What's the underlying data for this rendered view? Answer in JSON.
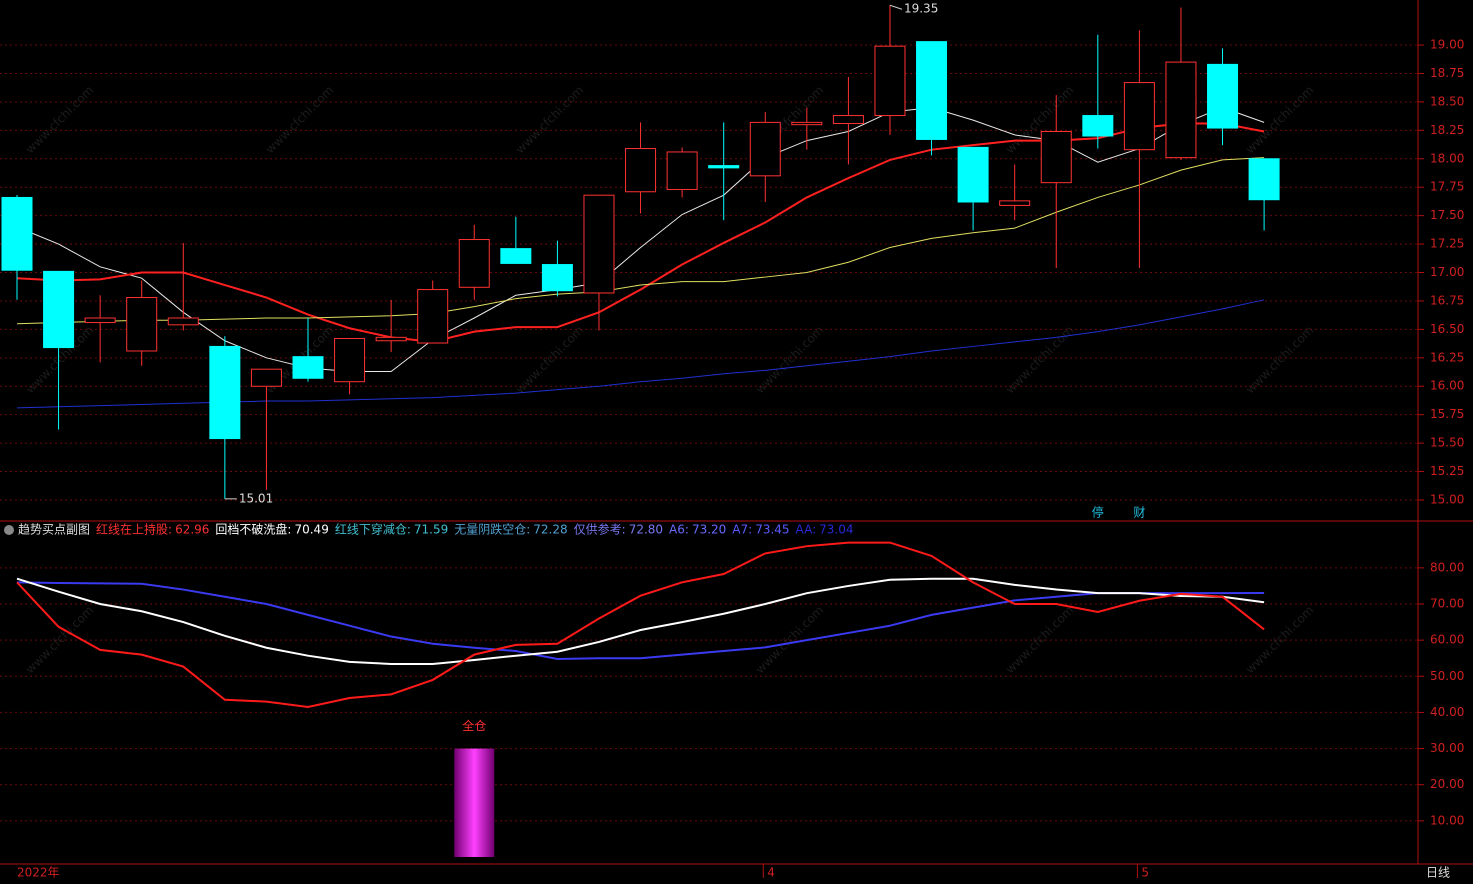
{
  "chart_data": [
    {
      "type": "candlestick",
      "categories": [
        "2022年",
        null,
        null,
        null,
        null,
        null,
        null,
        null,
        null,
        null,
        null,
        null,
        null,
        null,
        null,
        null,
        null,
        null,
        "4",
        null,
        null,
        null,
        null,
        null,
        null,
        null,
        null,
        "5",
        null,
        null,
        null
      ],
      "open": [
        17.66,
        17.01,
        16.56,
        16.31,
        16.54,
        16.35,
        16.0,
        16.26,
        16.04,
        16.4,
        16.38,
        16.87,
        17.21,
        17.07,
        16.82,
        17.71,
        17.73,
        17.94,
        17.85,
        18.3,
        18.31,
        18.38,
        19.03,
        18.1,
        17.59,
        17.79,
        18.38,
        18.08,
        18.01,
        18.83,
        18.0
      ],
      "high": [
        17.68,
        17.01,
        16.8,
        16.93,
        17.26,
        16.44,
        16.15,
        16.6,
        16.42,
        16.76,
        16.93,
        17.42,
        17.49,
        17.28,
        17.68,
        18.32,
        18.1,
        18.32,
        18.41,
        18.45,
        18.72,
        19.35,
        19.03,
        18.1,
        17.95,
        18.56,
        19.09,
        19.13,
        19.33,
        18.97,
        18.0
      ],
      "low": [
        16.76,
        15.62,
        16.21,
        16.18,
        16.49,
        15.01,
        15.09,
        16.04,
        15.93,
        16.3,
        16.38,
        16.76,
        17.08,
        16.79,
        16.49,
        17.52,
        17.66,
        17.46,
        17.62,
        18.08,
        17.95,
        18.21,
        18.03,
        17.37,
        17.46,
        17.04,
        18.09,
        17.04,
        17.99,
        18.12,
        17.37
      ],
      "close": [
        17.02,
        16.34,
        16.6,
        16.78,
        16.6,
        15.54,
        16.15,
        16.07,
        16.42,
        16.43,
        16.85,
        17.29,
        17.08,
        16.84,
        17.68,
        18.09,
        18.06,
        17.92,
        18.32,
        18.32,
        18.38,
        18.99,
        18.17,
        17.62,
        17.63,
        18.24,
        18.2,
        18.67,
        18.85,
        18.27,
        17.64
      ],
      "up_color": "#ff3232",
      "down_color": "#00ffff",
      "series": [
        {
          "color": "#e8e8e8",
          "values": [
            17.4,
            17.25,
            17.05,
            16.95,
            16.65,
            16.4,
            16.25,
            16.16,
            16.13,
            16.13,
            16.41,
            16.6,
            16.8,
            16.85,
            16.91,
            17.22,
            17.51,
            17.68,
            18.01,
            18.16,
            18.24,
            18.41,
            18.45,
            18.34,
            18.21,
            18.16,
            17.97,
            18.09,
            18.3,
            18.45,
            18.32
          ]
        },
        {
          "color": "#ff2020",
          "values": [
            16.95,
            16.93,
            16.94,
            17.0,
            17.0,
            16.89,
            16.78,
            16.63,
            16.51,
            16.43,
            16.39,
            16.48,
            16.52,
            16.52,
            16.65,
            16.85,
            17.07,
            17.26,
            17.44,
            17.66,
            17.83,
            17.99,
            18.08,
            18.12,
            18.16,
            18.16,
            18.18,
            18.27,
            18.31,
            18.31,
            18.24
          ]
        },
        {
          "color": "#e0e060",
          "values": [
            16.55,
            16.56,
            16.57,
            16.58,
            16.58,
            16.59,
            16.6,
            16.6,
            16.61,
            16.62,
            16.64,
            16.7,
            16.77,
            16.81,
            16.83,
            16.89,
            16.92,
            16.92,
            16.96,
            17.0,
            17.09,
            17.22,
            17.3,
            17.35,
            17.39,
            17.53,
            17.66,
            17.77,
            17.9,
            17.99,
            18.01
          ]
        },
        {
          "color": "#2030d0",
          "values": [
            15.81,
            15.82,
            15.83,
            15.84,
            15.85,
            15.86,
            15.87,
            15.87,
            15.88,
            15.89,
            15.9,
            15.92,
            15.94,
            15.97,
            16.0,
            16.04,
            16.07,
            16.11,
            16.14,
            16.18,
            16.22,
            16.26,
            16.31,
            16.35,
            16.39,
            16.43,
            16.48,
            16.54,
            16.61,
            16.68,
            16.76
          ]
        }
      ],
      "ylim": [
        14.824,
        19.396
      ],
      "yticks": [
        {
          "value": 15,
          "label": "15.00"
        },
        {
          "value": 15.25,
          "label": "15.25"
        },
        {
          "value": 15.5,
          "label": "15.50"
        },
        {
          "value": 15.75,
          "label": "15.75"
        },
        {
          "value": 16,
          "label": "16.00"
        },
        {
          "value": 16.25,
          "label": "16.25"
        },
        {
          "value": 16.5,
          "label": "16.50"
        },
        {
          "value": 16.75,
          "label": "16.75"
        },
        {
          "value": 17,
          "label": "17.00"
        },
        {
          "value": 17.25,
          "label": "17.25"
        },
        {
          "value": 17.5,
          "label": "17.50"
        },
        {
          "value": 17.75,
          "label": "17.75"
        },
        {
          "value": 18,
          "label": "18.00"
        },
        {
          "value": 18.25,
          "label": "18.25"
        },
        {
          "value": 18.5,
          "label": "18.50"
        },
        {
          "value": 18.75,
          "label": "18.75"
        },
        {
          "value": 19,
          "label": "19.00"
        }
      ],
      "grid": true,
      "high_label_index": 21,
      "low_label_index": 5,
      "annotations": [
        {
          "index": 26,
          "text": "停"
        },
        {
          "index": 27,
          "text": "财"
        }
      ],
      "period": "日线"
    },
    {
      "type": "line",
      "title": "趋势买点副图",
      "readouts": [
        {
          "name": "红线在上持股:",
          "value": 62.96,
          "color": "#ff3030"
        },
        {
          "name": "回档不破洗盘:",
          "value": 70.49,
          "color": "#ffffff"
        },
        {
          "name": "红线下穿减仓:",
          "value": 71.59,
          "color": "#40c0d0"
        },
        {
          "name": "无量阴跌空仓:",
          "value": 72.28,
          "color": "#50a0d0"
        },
        {
          "name": "仅供参考:",
          "value": 72.8,
          "label": "72.80",
          "color": "#7878f0"
        },
        {
          "name": "A6:",
          "value": 73.2,
          "label": "73.20",
          "color": "#6a6aff"
        },
        {
          "name": "A7:",
          "value": 73.45,
          "color": "#5a5aff"
        },
        {
          "name": "AA:",
          "value": 73.04,
          "color": "#2828d8"
        }
      ],
      "series": [
        {
          "color": "#3a3af0",
          "values": [
            76,
            75.8,
            75.7,
            75.6,
            74,
            72,
            70,
            67,
            64,
            61,
            59,
            57.9,
            57,
            54.8,
            55,
            55,
            56,
            57,
            58,
            60,
            62,
            64,
            67,
            69,
            71,
            72,
            73,
            73,
            73,
            73,
            73.04
          ]
        },
        {
          "color": "#ffffff",
          "values": [
            77,
            73.4,
            70,
            68,
            65,
            61.2,
            57.9,
            55.7,
            54,
            53.4,
            53.4,
            54.5,
            55.7,
            56.8,
            59.5,
            62.8,
            65,
            67.3,
            70,
            73,
            75,
            76.7,
            77,
            77,
            75.3,
            74,
            73,
            73,
            72.2,
            72,
            70.49
          ]
        },
        {
          "color": "#ff1a1a",
          "values": [
            76,
            63.7,
            57.3,
            56,
            52.7,
            43.5,
            43,
            41.5,
            44,
            45,
            49,
            56,
            58.7,
            59,
            66,
            72.3,
            76,
            78.3,
            84,
            86,
            87,
            87,
            83.3,
            76,
            70,
            70,
            67.8,
            70.9,
            72.8,
            72,
            62.96
          ]
        }
      ],
      "bars": {
        "values": [
          null,
          null,
          null,
          null,
          null,
          null,
          null,
          null,
          null,
          null,
          null,
          30,
          null,
          null,
          null,
          null,
          null,
          null,
          null,
          null,
          null,
          null,
          null,
          null,
          null,
          null,
          null,
          null,
          null,
          null,
          null
        ],
        "label": "全仓"
      },
      "ylim": [
        0,
        92
      ],
      "yticks": [
        {
          "value": 10,
          "label": "10.00"
        },
        {
          "value": 20,
          "label": "20.00"
        },
        {
          "value": 30,
          "label": "30.00"
        },
        {
          "value": 40,
          "label": "40.00"
        },
        {
          "value": 50,
          "label": "50.00"
        },
        {
          "value": 60,
          "label": "60.00"
        },
        {
          "value": 70,
          "label": "70.00"
        },
        {
          "value": 80,
          "label": "80.00"
        }
      ],
      "grid": true
    }
  ],
  "watermark": "www.cfchi.com"
}
